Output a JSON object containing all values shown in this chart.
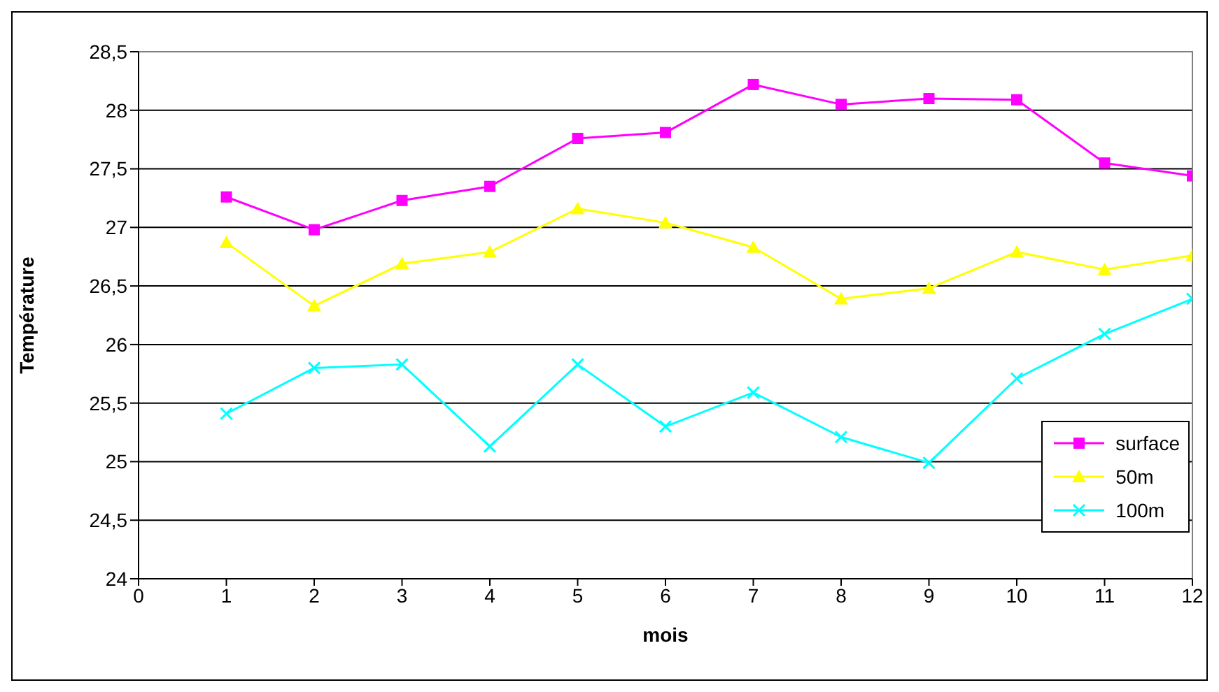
{
  "chart_data": {
    "type": "line",
    "xlabel": "mois",
    "ylabel": "Température",
    "x": [
      1,
      2,
      3,
      4,
      5,
      6,
      7,
      8,
      9,
      10,
      11,
      12
    ],
    "series": [
      {
        "name": "surface",
        "color": "#ff00ff",
        "marker": "square",
        "values": [
          27.26,
          26.98,
          27.23,
          27.35,
          27.76,
          27.81,
          28.22,
          28.05,
          28.1,
          28.09,
          27.55,
          27.44
        ]
      },
      {
        "name": "50m",
        "color": "#ffff00",
        "marker": "triangle",
        "values": [
          26.87,
          26.33,
          26.69,
          26.79,
          27.16,
          27.04,
          26.83,
          26.39,
          26.48,
          26.79,
          26.64,
          26.76
        ]
      },
      {
        "name": "100m",
        "color": "#00ffff",
        "marker": "cross",
        "values": [
          25.41,
          25.8,
          25.83,
          25.13,
          25.83,
          25.3,
          25.59,
          25.21,
          24.99,
          25.71,
          26.09,
          26.39
        ]
      }
    ],
    "xlim": [
      0,
      12
    ],
    "xticks": [
      0,
      1,
      2,
      3,
      4,
      5,
      6,
      7,
      8,
      9,
      10,
      11,
      12
    ],
    "ylim": [
      24,
      28.5
    ],
    "yticks": [
      24,
      {
        "value": 24.5,
        "label": "24,5"
      },
      25,
      {
        "value": 25.5,
        "label": "25,5"
      },
      26,
      {
        "value": 26.5,
        "label": "26,5"
      },
      27,
      {
        "value": 27.5,
        "label": "27,5"
      },
      28,
      {
        "value": 28.5,
        "label": "28,5"
      }
    ],
    "grid": "y",
    "legend": "bottom right"
  }
}
